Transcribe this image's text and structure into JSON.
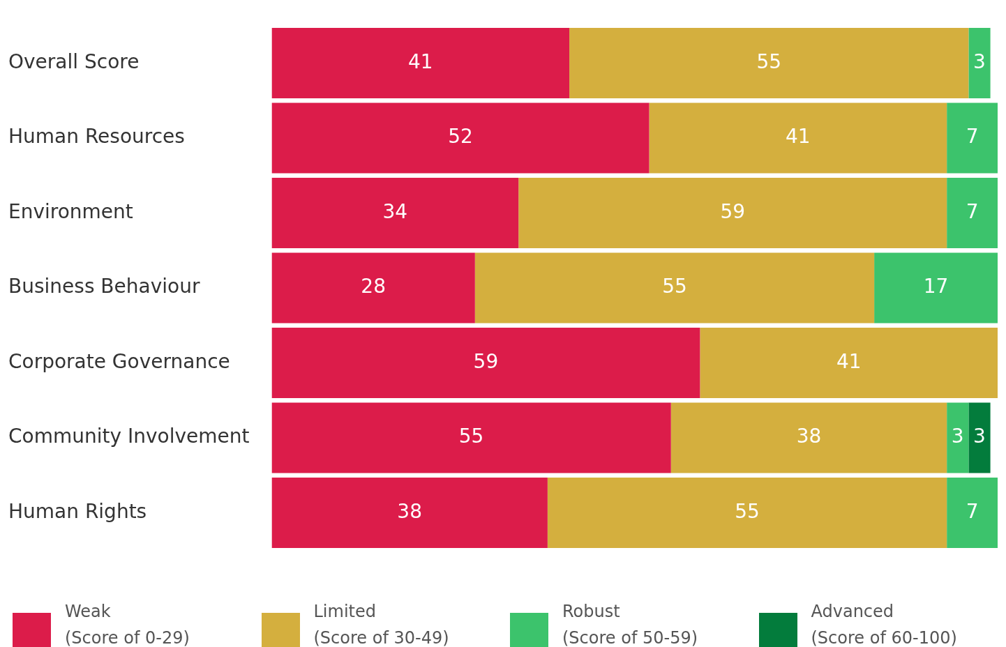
{
  "chart_data": {
    "type": "bar",
    "orientation": "horizontal",
    "stacked": true,
    "data_labels": true,
    "legend": "bottom",
    "tick_labels": "y",
    "xlim": [
      0,
      100
    ],
    "categories": [
      "Overall Score",
      "Human Resources",
      "Environment",
      "Business Behaviour",
      "Corporate Governance",
      "Community Involvement",
      "Human Rights"
    ],
    "series": [
      {
        "name": "Weak\n(Score of 0-29)",
        "color": "#dc1c4a",
        "values": [
          41,
          52,
          34,
          28,
          59,
          55,
          38
        ]
      },
      {
        "name": "Limited\n(Score of 30-49)",
        "color": "#d4af3e",
        "values": [
          55,
          41,
          59,
          55,
          41,
          38,
          55
        ]
      },
      {
        "name": "Robust\n(Score of 50-59)",
        "color": "#3cc36c",
        "values": [
          3,
          7,
          7,
          17,
          null,
          3,
          7
        ]
      },
      {
        "name": "Advanced\n(Score of 60-100)",
        "color": "#037c3c",
        "values": [
          null,
          null,
          null,
          null,
          null,
          3,
          null
        ]
      }
    ]
  }
}
